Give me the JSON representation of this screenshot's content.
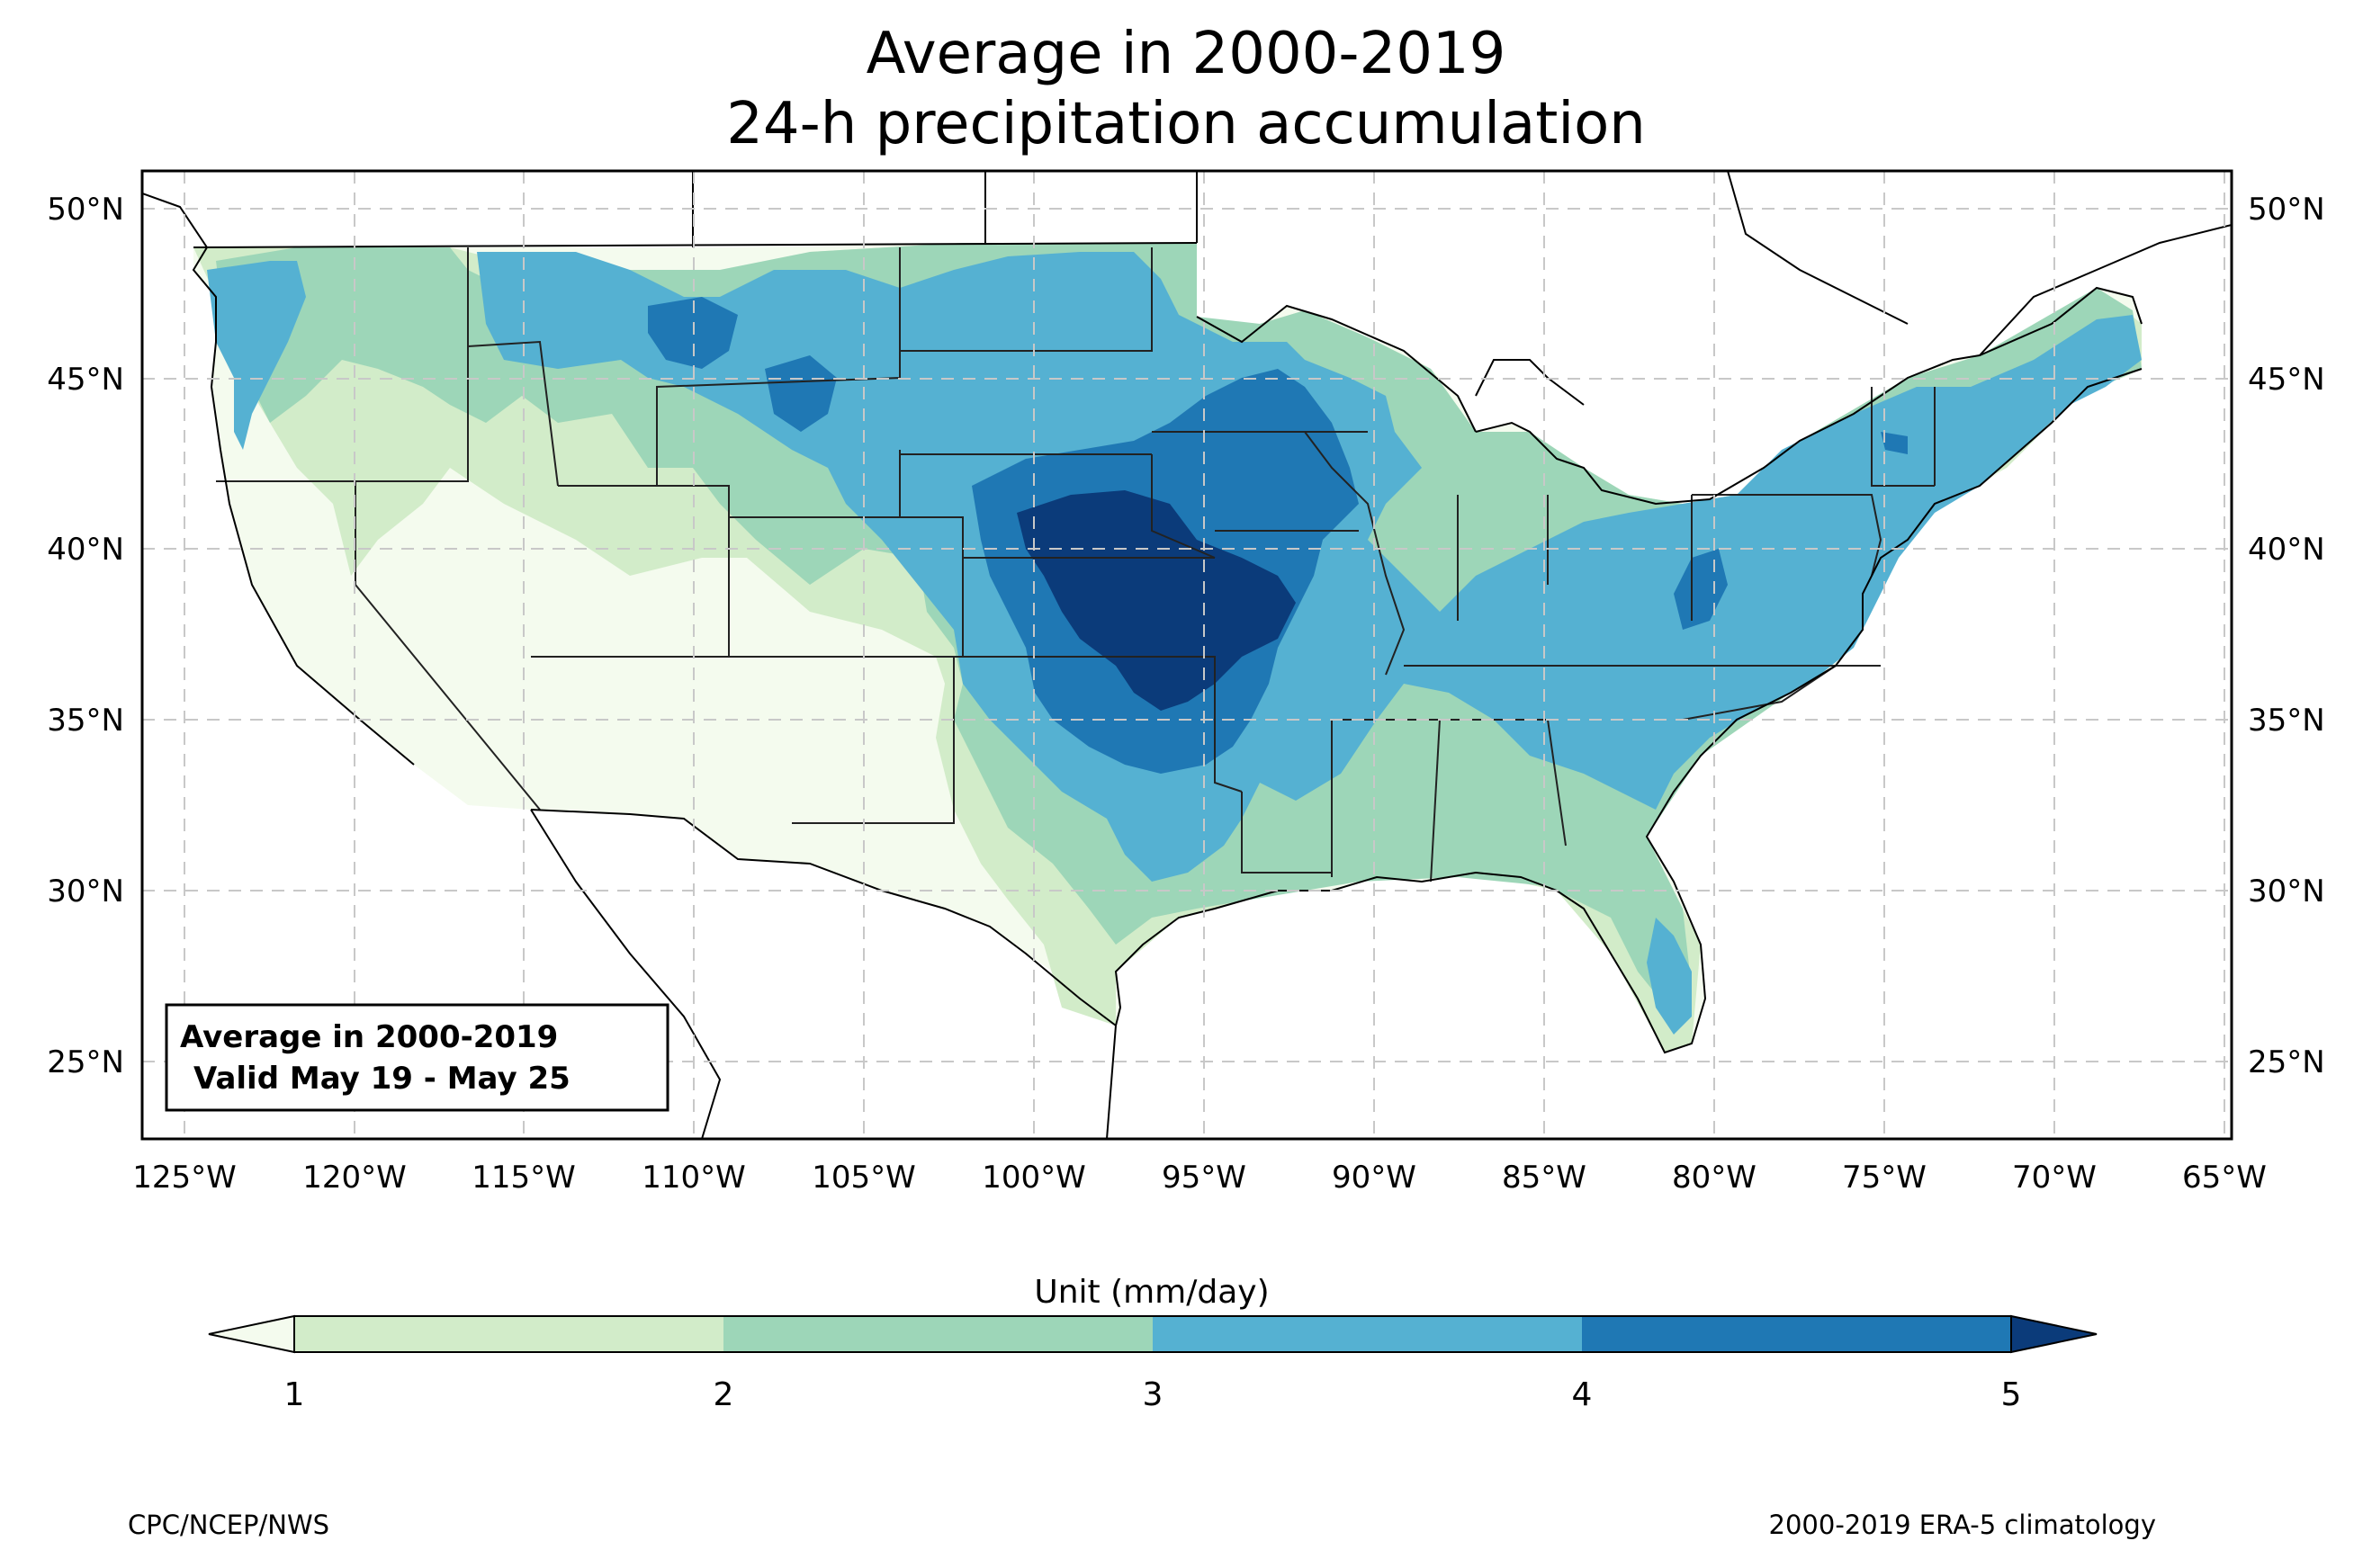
{
  "title_line1": "Average in 2000-2019",
  "title_line2": "24-h precipitation accumulation",
  "info_box": {
    "line1": "Average in 2000-2019",
    "line2": "Valid May 19 - May 25"
  },
  "lat_ticks": [
    "25°N",
    "30°N",
    "35°N",
    "40°N",
    "45°N",
    "50°N"
  ],
  "lon_ticks": [
    "125°W",
    "120°W",
    "115°W",
    "110°W",
    "105°W",
    "100°W",
    "95°W",
    "90°W",
    "85°W",
    "80°W",
    "75°W",
    "70°W",
    "65°W"
  ],
  "colorbar": {
    "unit_label": "Unit (mm/day)",
    "ticks": [
      "1",
      "2",
      "3",
      "4",
      "5"
    ],
    "colors": [
      "#f4fbee",
      "#d2ecc9",
      "#9dd6b8",
      "#55b1d2",
      "#1f78b4",
      "#0b3b7a"
    ]
  },
  "credits": {
    "left": "CPC/NCEP/NWS",
    "right": "2000-2019 ERA-5 climatology"
  }
}
